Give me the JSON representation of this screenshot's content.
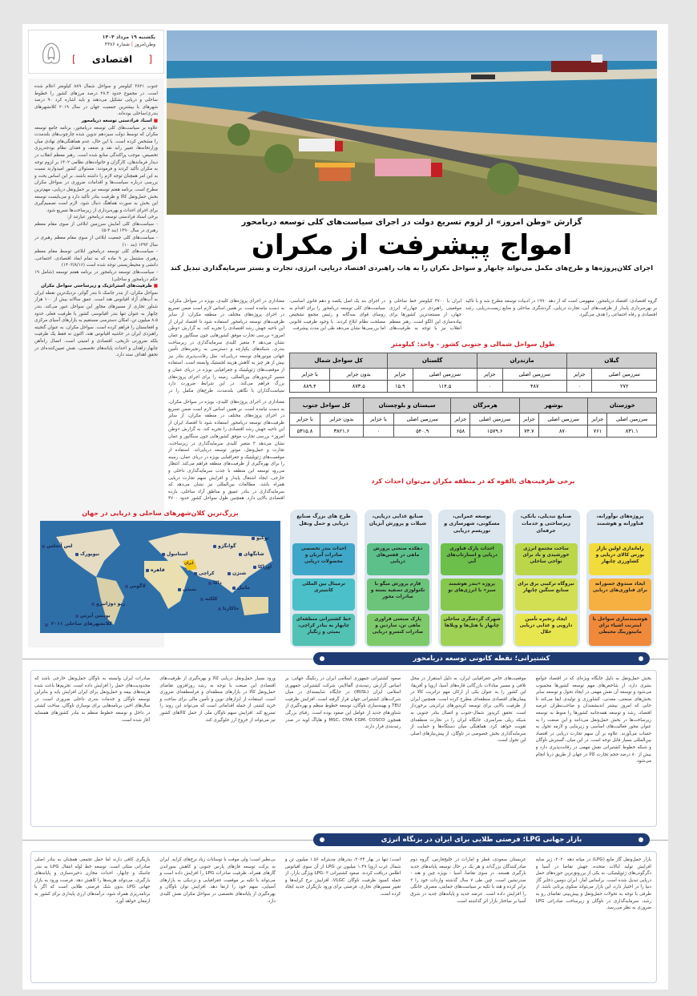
{
  "header": {
    "date": "یکشنبه ۱۹ مرداد ۱۴۰۴",
    "paper": "وطن‌امروز",
    "issue": "شماره ۴۳۸۶",
    "section": "اقتصادی",
    "page_number": "۵"
  },
  "article": {
    "kicker": "گزارش «وطن امروز» از لزوم تسریع دولت در اجرای سیاست‌های کلی توسعه دریامحور",
    "title": "امواج پیشرفت از مکران",
    "lead": "اجرای کلان‌پروژه‌ها و طرح‌های مکمل می‌تواند چابهار و سواحل مکران را به هاب راهبردی اقتصاد دریایی، انرژی، تجارت و بستر سرمایه‌گذاری تبدیل کند",
    "intro": [
      "گروه اقتصادی: اقتصاد دریامحور، مفهومی است که از دهه ۱۹۹۰ در ادبیات توسعه مطرح شد و با تأکید بر بهره‌برداری پایدار از ظرفیت‌های آبی، تجارت دریایی، گردشگری ساحلی و منابع زیست‌دریایی، رشد اقتصادی و رفاه اجتماعی را هدف می‌گیرد.",
      "ایران با ۴۷۰۰ کیلومتر خط ساحلی و موقعیتی راهبردی در چهارراه انرژی جهان، از مستعدترین کشورها برای پیاده‌سازی این الگو است. رهبر معظم انقلاب نیز با توجه به ظرفیت‌های توسعه دریامحور تأکیدات فراوانی داشته‌اند و آبان سال گذشته",
      "در اجرای بند یک اصل یکصد و دهم قانون اساسی، سیاست‌های کلی توسعه دریامحور را برای اقدام به روسای قوای سه‌گانه و رئیس مجمع تشخیص مصلحت نظام ابلاغ کردند. با وجود ظرفیت قانونی اما بررسی‌ها نشان می‌دهد طی این مدت پیشرفت",
      "معناداری در اجرای پروژه‌های کلیدی، بویژه در سواحل مکران، به دست نیامده است. بر همین اساس لازم است ضمن تسریع در اجرای پروژه‌های مختلف در منطقه مکران، از سایر ظرفیت‌های توسعه دریامحور استفاده شود تا اقتصاد ایران از این ناحیه جهش رشد اقتصادی را تجربه کند. به گزارش «وطن امروز» بررسی تجارب موفق کشورهایی چون سنگاپور و عمان نشان می‌دهد ۳ متغیر کلیدی سرمایه‌گذاری در زیرساخت بندری، شبکه‌های یکپارچه و دسترسی به زنجیره‌های تأمین جهانی موتورهای توسعه دریایی‌اند. مثل رقابت‌پذیری بنادر نیز بیش از هر چیز به کاهش هزینه لجستیک وابسته است. استفاده از موقعیت‌های ژئوپلیتیک و جغرافیایی بویژه در دریای عمان و مسیر کریدورهای بین‌المللی، زمینه را برای اجرای پروژه‌های بزرگ فراهم می‌کند. در این شرایط ضرورت دارد سیاست‌گذاران با نگاهی بلندمدت، طرح‌های مکمل را در اولویت قرار دهند و سهم سواحل جنوبی در تولید ثروت ملی را افزایش دهند."
    ],
    "left_column": [
      "جنوب ۳۸۲۱ کیلومتر و سواحل شمال ۸۸۹ کیلومتر اعلام شده است. در مجموع حدود ۲۸.۴ درصد مرزهای کشور را خطوط ساحلی و دریایی تشکیل می‌دهند و باید اشاره کرد ۹۰ درصد شهرهای با بیشترین جمعیت جهان در سال ۲۰۱۹ کلانشهرهای بندری/ساحلی بوده‌اند.",
      "اسناد فرادستی توسعه دریامحور",
      "علاوه بر سیاست‌های کلی توسعه دریامحور، برنامه جامع توسعه مکران که توسط دولت سیزدهم تدوین شده چارچوب‌های بلندمدت را مشخص کرده است. با این حال، عدم هماهنگی‌های نهادی میان وزارتخانه‌ها، تغییر رابه نقد و ضعف و فقدان نظام بودجه‌ریزی تخصیص، موجب پراکندگی منابع شده است. رهبر معظم انقلاب در دیدار فرماندهان، کارگزان و خانواده‌های نظامی ۱۴۰۲ بر لزوم توجه به مکران تأکید کردند و فرمودند: مسئولان کشور امیدوارند نسبت به این امر همچنان توجه لازم را داشته باشند. بر این اساس بحث و بررسی درباره سیاست‌ها و اقدامات ضروری در سواحل مکران مطرح است. برنامه هفتم توسعه نیز بر حمل‌ونقل دریایی، مهم‌ترین بخش حمل‌ونقل کالا و ظرفیت بنادر تأکید دارد و می‌بایست توسعه این بخش به صورت هماهنگ دنبال شود. لازم است تصمیم‌گیری برای اجرای احداث و بهره‌برداری از زیرساخت‌ها تسریع شود.",
      "برخی اسناد فرادستی توسعه دریامحور عبارتند از:",
      "- سیاست‌های کلی آمایش سرزمین ابلاغی از سوی مقام معظم رهبری در سال ۱۳۹۰ (بند ۳-۵)",
      "- سیاست‌های کلی جمعیت ابلاغی از سوی مقام معظم رهبری در سال ۱۳۹۳ (بند ۱۰)",
      "- سیاست‌های کلی توسعه دریامحور ابلاغی توسط مقام معظم رهبری مشتمل بر ۹ ماده که به تمام ابعاد اقتصادی، اجتماعی، دانشی و محیط‌زیستی توجه شده است (۱۴۰۳/۸/۱۶)",
      "- سیاست‌های توسعه دریامحور در برنامه هفتم توسعه (شامل ۱۹ حکم دریامحور و ساحلی)",
      "ظرفیت‌های استراتژیک و زیرساختی سواحل مکران",
      "سواحل مکران، از بندر جاسک تا بندر گواتر، نزدیک‌ترین نقطه ایران به آب‌های آزاد اقیانوس هند است. عمق سالانه بیش از ۱۰۰ هزار شناور تجاری از مسیرهای مجاور این سواحل عبور می‌کند. بندر چابهار به عنوان تنها بندر اقیانوسی کشور با ظرفیت فعلی حدود ۸.۵ میلیون تن، امکان دسترسی مستقیم به بازارهای آسیای مرکزی و افغانستان را فراهم کرده است. سواحل مکران، به عنوان گنجینه راهبردی ایران در حاشیه اقیانوس هند، اکنون نه فقط یک ظرفیت بلکه ضرورتی تاریخی، اقتصادی و امنیتی است. اتصال راه‌آهن چابهار-زاهدان و احداث پایانه‌های تخصصی، نقش تعیین‌کننده‌ای در تحقق اهداف سند دارد."
    ],
    "middle_column": "معناداری در اجرای پروژه‌های کلیدی، بویژه در سواحل مکران، به دست نیامده است. بر همین اساس لازم است ضمن تسریع در اجرای پروژه‌های مختلف در منطقه مکران، از سایر ظرفیت‌های توسعه دریامحور استفاده شود تا اقتصاد ایران از این ناحیه جهش رشد اقتصادی را تجربه کند. به گزارش «وطن امروز» بررسی تجارب موفق کشورهایی چون سنگاپور و عمان نشان می‌دهد ۳ متغیر کلیدی سرمایه‌گذاری در زیرساخت، تجارت و حمل‌ونقل، موتور توسعه دریایی‌اند. استفاده از موقعیت‌های ژئوپلیتیک و جغرافیایی بویژه در دریای عمان، زمینه را برای بهره‌گیری از ظرفیت‌های منطقه فراهم می‌کند. انتظار می‌رود توسعه این منطقه با جذب سرمایه‌گذاری داخلی و خارجی، ایجاد اشتغال پایدار و افزایش سهم تجارت دریایی همراه باشد. مطالعات بین‌المللی نیز نشان می‌دهد که سرمایه‌گذاری در بنادر عمیق و مناطق آزاد ساحلی، بازده اقتصادی بالایی دارد. همچنین طول سواحل کشور حدود ۴۷۰۰ کیلومتر است که طول سواحل"
  },
  "coast_table": {
    "title": "طول سواحل شمالی و جنوبی کشور - واحد: کیلومتر",
    "north": {
      "provinces": [
        "گیلان",
        "مازندران",
        "گلستان",
        "کل سواحل شمال"
      ],
      "subheaders": [
        "سرزمین اصلی",
        "جزایر",
        "سرزمین اصلی",
        "جزایر",
        "سرزمین اصلی",
        "جزایر",
        "بدون جزایر",
        "با جزایر"
      ],
      "values": [
        "۲۷۲",
        "۰",
        "۴۸۷",
        "۰",
        "۱۱۴.۵",
        "۱۵.۹",
        "۸۷۳.۵",
        "۸۸۹.۴"
      ]
    },
    "south": {
      "provinces": [
        "خوزستان",
        "بوشهر",
        "هرمزگان",
        "سیستان و بلوچستان",
        "کل سواحل جنوب"
      ],
      "subheaders": [
        "سرزمین اصلی",
        "جزایر",
        "سرزمین اصلی",
        "جزایر",
        "سرزمین اصلی",
        "جزایر",
        "سرزمین اصلی",
        "با جزایر",
        "بدون جزایر",
        "با جزایر"
      ],
      "values": [
        "۸۳۱.۱",
        "۷۶۱",
        "۸۷۰",
        "۷۴.۷",
        "۱۵۷۹.۶",
        "۶۵۸",
        "۵۴۰.۹",
        "۰",
        "۳۸۲۱.۶",
        "۵۳۱۵.۸"
      ]
    }
  },
  "opportunities": {
    "title": "برخی ظرفیت‌های بالقوه که در منطقه مکران می‌توان احداث کرد",
    "groups": [
      {
        "title": "پروژه‌های نوآورانه، فناورانه و هوشمند",
        "items": [
          {
            "text": "راه‌اندازی اولین بازار بورس کالای دریایی و کشاورزی چابهار",
            "color": "#f2dc3c"
          },
          {
            "text": "ایجاد صندوق جسورانه برای فناوری‌های دریایی",
            "color": "#f6b041"
          },
          {
            "text": "هوشمندسازی سواحل با اینترنت اشیاء برای مانیتورینگ محیطی",
            "color": "#f08a3a"
          }
        ]
      },
      {
        "title": "صنایع تبدیلی، بانکی، زیرساختی و خدمات حرفه‌ای",
        "items": [
          {
            "text": "ساخت مجتمع انرژی خورشیدی و باد برای نواحی ساحلی",
            "color": "#bcd64a"
          },
          {
            "text": "نیروگاه ترکیبی برق برای صنایع سنگین چابهار",
            "color": "#d2df52"
          },
          {
            "text": "ایجاد زنجیره تأمین دارویی و غذایی دریایی حلال",
            "color": "#e8e64e"
          }
        ]
      },
      {
        "title": "توسعه عمرانی، مسکونی، شهرسازی و توریسم دریایی",
        "items": [
          {
            "text": "احداث پارک فناوری دریایی و استارتاپ‌های آبی",
            "color": "#6cbf4a"
          },
          {
            "text": "پروژه «بندر هوشمند سبز» با انرژی‌های نو",
            "color": "#86c84e"
          },
          {
            "text": "شهرک گردشگری ساحلی چابهار با هتل‌ها و ویلاها",
            "color": "#9fd154"
          }
        ]
      },
      {
        "title": "صنایع غذایی دریایی، شیلات و پرورش آبزیان",
        "items": [
          {
            "text": "دهکده صنعتی پرورش ماهی در قفس‌های دریایی",
            "color": "#5cc08a"
          },
          {
            "text": "فارم پرورش میگو با تکنولوژی تصفیه بسته و صادرات محور",
            "color": "#6cc47a"
          },
          {
            "text": "پارک صنعتی فراوری ماهی تن، ساردین و صادرات کنسرو دریایی",
            "color": "#7dca6a"
          }
        ]
      },
      {
        "title": "طرح های بزرگ صنایع دریایی و حمل ونقل",
        "items": [
          {
            "text": "احداث بندر تخصصی صادرات آبزیان و محصولات دریایی",
            "color": "#3fa7c9"
          },
          {
            "text": "ترمینال بین المللی کانتینری",
            "color": "#4cc0c9"
          },
          {
            "text": "خط کشتیرانی منطقه‌ای چابهار به بنادر کراچی، بمبئی و زنگبار",
            "color": "#52c2b4"
          }
        ]
      }
    ]
  },
  "map": {
    "title": "بزرگ‌ترین کلان‌شهرهای ساحلی و دریایی در جهان",
    "legend": "کلانشهرهای ساحلی ۲۰۱۱",
    "iran_label": "ایران",
    "cities": [
      "لس آنجلس",
      "نیویورک",
      "ریو دوژانیرو",
      "بوینس آیرس",
      "لاگوس",
      "قاهره",
      "استانبول",
      "کراچی",
      "بمبئی",
      "کلکته",
      "داکا",
      "جاکارتا",
      "گوانگژو",
      "شانگهای",
      "شنژن",
      "مانیل",
      "توکیو",
      "اوزاکا"
    ]
  },
  "section_shipping": {
    "title": "کشتیرانی؛ نقطه کانونی توسعه دریامحور",
    "columns": [
      "بخش حمل‌ونقل به دلیل جایگاه ویژه‌ای که در اقتصاد جوامع بشری دارد، از شاخص‌های مهم توسعه کشورها محسوب می‌شود و توسعه آن نقش مهمی در ایجاد تحول و توسعه سایر بخش‌های صنعتی، معدنی، کشاورزی و تولیدی ایفا می‌کند تا جایی که امروز بیشتر اندیشمندان و صاحب‌نظران عرصه اقتصاد، رشد و توسعه همه‌جانبه کشورها را منوط به توسعه زیرساخت‌ها در بخش حمل‌ونقل می‌دانند و این صنعت را به عنوان محور فعالیت‌های اساسی و زیربنایی و لازمه تحول به حساب می‌آورند. علاوه بر آن سهم تجارت دریایی در اقتصاد بین‌المللی بسیار قابل توجه است. در این میان، گسترش ناوگان و شبکه خطوط کشتیرانی نقش مهمی در رقابت‌پذیری دارد و بیش از ۸۰ درصد حجم تجارت کالا در جهان از طریق دریا انجام می‌شود.",
      "موقعیت‌های خاص جغرافیایی ایران، به دلیل استقرار در محل تلاقی و مسیر مبادلات بازرگانی قاره‌های آسیا، اروپا و آفریقا، این کشور را به عنوان یکی از ارکان مهم ترانزیت کالا در پیمان‌های اقتصادی منطقه‌ای مطرح کرده است. همچنین ایران از ظرفیت بالایی برای توسعه کریدورهای ترانزیتی برخوردار است. تحقق کریدور شمال-جنوب و اتصال بنادر جنوبی به شبکه ریلی سراسری، جایگاه ایران را در تجارت منطقه‌ای تقویت خواهد کرد. هماهنگی میان دستگاه‌ها و حمایت از سرمایه‌گذاری بخش خصوصی در ناوگان، از پیش‌نیازهای اصلی این تحول است.",
      "صعود کشتیرانی جمهوری اسلامی ایران در رنکینگ جهانی: بر اساس گزارش رتبه‌بندی آلفالاینر، شرکت کشتیرانی جمهوری اسلامی ایران (IRISL) در جایگاه شایسته‌ای در میان شرکت‌های کشتیرانی جهان قرار گرفته است. افزایش ظرفیت TEU و بهینه‌سازی ناوگان، توسعه خطوط منظم و بهره‌گیری از شناورهای جدید از عوامل این صعود بوده است. رقبای بزرگی همچون MSC، CMA CGM، COSCO و هاپاگ لوید در صدر رتبه‌بندی قرار دارند.",
      "ورود بسیار حمل‌ونقل دریایی کالا و بهره‌گیری از ظرفیت‌های اقتصادی این صنعت با توجه به رشد روزافزون تقاضای حمل‌ونقل کالا در بازارهای منطقه‌ای و فرامنطقه‌ای ضروری است. استفاده از ابزارهای نوین و تأمین مالی برای ساخت و خرید کشتی از جمله اقداماتی است که می‌تواند این روند را تسریع کند. افزایش سهم ناوگان ملی از حمل کالاهای کشور نیز می‌تواند از خروج ارز جلوگیری کند.",
      "صادرات ایران وابسته به ناوگان حمل‌ونقل خارجی باشد که محدودیت‌های حمل را افزایش داده است. تحریم‌ها باعث شده هزینه‌های بیمه و حمل‌ونقل برای ایران افزایش یابد و بنابراین توسعه ناوگان و خدمات بندری داخلی ضروری است. در سال‌های اخیر، برنامه‌هایی برای نوسازی ناوگان، ساخت کشتی در داخل و توسعه خطوط منظم به بنادر کشورهای همسایه آغاز شده است."
    ]
  },
  "section_lpg": {
    "title": "بازار جهانی LPG؛ فرصتی طلایی برای ایران در بزنگاه انرژی",
    "columns": [
      "بازار حمل‌ونقل گاز مایع (LPG) در میانه دهه ۲۰۲۰، زیر سایه افزایش تولید ایالات متحده، جهش تقاضا در آسیا و دگرگونی‌های ژئوپلیتیکی، به یکی از پررونق‌ترین حوزه‌های حمل دریایی تبدیل شده است. براساس آمار، ایران دومین ذخایر گاز دنیا را در اختیار دارد، این بازار می‌تواند سکوی پرتابی باشد. از طرفی با توجه به تحولات حمل‌ونقل و پیش‌بینی تقاضای رو به رشد، سرمایه‌گذاری در ناوگان و زیرساخت صادراتی LPG ضروری به نظر می‌رسد.",
      "عربستان سعودی، قطر و امارات در خلیج‌فارس، گروه دوم صادرکنندگان بزرگ‌اند و هر یک در حال توسعه پایانه‌های جدید بارگیری هستند. در سوی تقاضا، آسیا - بویژه چین و هند - صدرنشین است. چین طی ۷ سال گذشته واردات خود را ۲ برابر کرده و هند با تکیه بر سیاست‌های حمایتی، مصرف خانگی را افزایش داده است. عرضه جدید و پایانه‌های جدید در شرق آسیا بر ساختار بازار اثر گذاشته است.",
      "است؛ تنها در بهار ۲۰۲۴، بندرهای مدیترانه ۱.۵۶ میلیون تن و شمال غرب اروپا ۱.۴۹ میلیون تن LPG از آن سوی اقیانوس اطلس دریافت کردند. صعود کشتیرانی LPG: ۳ ویژگی بازار، از جمله کمبود ظرفیت ناوگان VLGC، افزایش نرخ کرایه‌ها و تغییر مسیرهای تجاری، فرصتی برای ورود بازیگران جدید ایجاد کرده است.",
      "بی‌نظیر است؛ ولی موقت با نوسانات زیاد نرخ‌های کرایه. ایران به برکت توسعه فازهای پارس جنوبی و کاهش سوزاندن گازهای همراه، ظرفیت صادرات LPG را افزایش داده است و می‌تواند با تکیه بر موقعیت جغرافیایی و نزدیکی به بازارهای آسیایی، سهم خود را ارتقا دهد. افزایش توان ناوگان و بهره‌گیری از پایانه‌های تخصصی در سواحل مکران نقش کلیدی دارد.",
      "بازیگری کافی دارند اما حمل تجمعی همچنان به بنادر اصلی صادراتی متکی است. توسعه خط لوله انتقال LPG به بندر جاسک و چابهار، احداث مخازن ذخیره‌سازی و پایانه‌های بارگیری، می‌تواند هزینه‌ها را کاهش دهد. فرصت ورود به بازار جهانی LPG بدون شک فرصتی طلایی است که اگر با برنامه‌ریزی همراه شود، درآمدهای ارزی پایداری برای کشور به ارمغان خواهد آورد."
    ]
  }
}
